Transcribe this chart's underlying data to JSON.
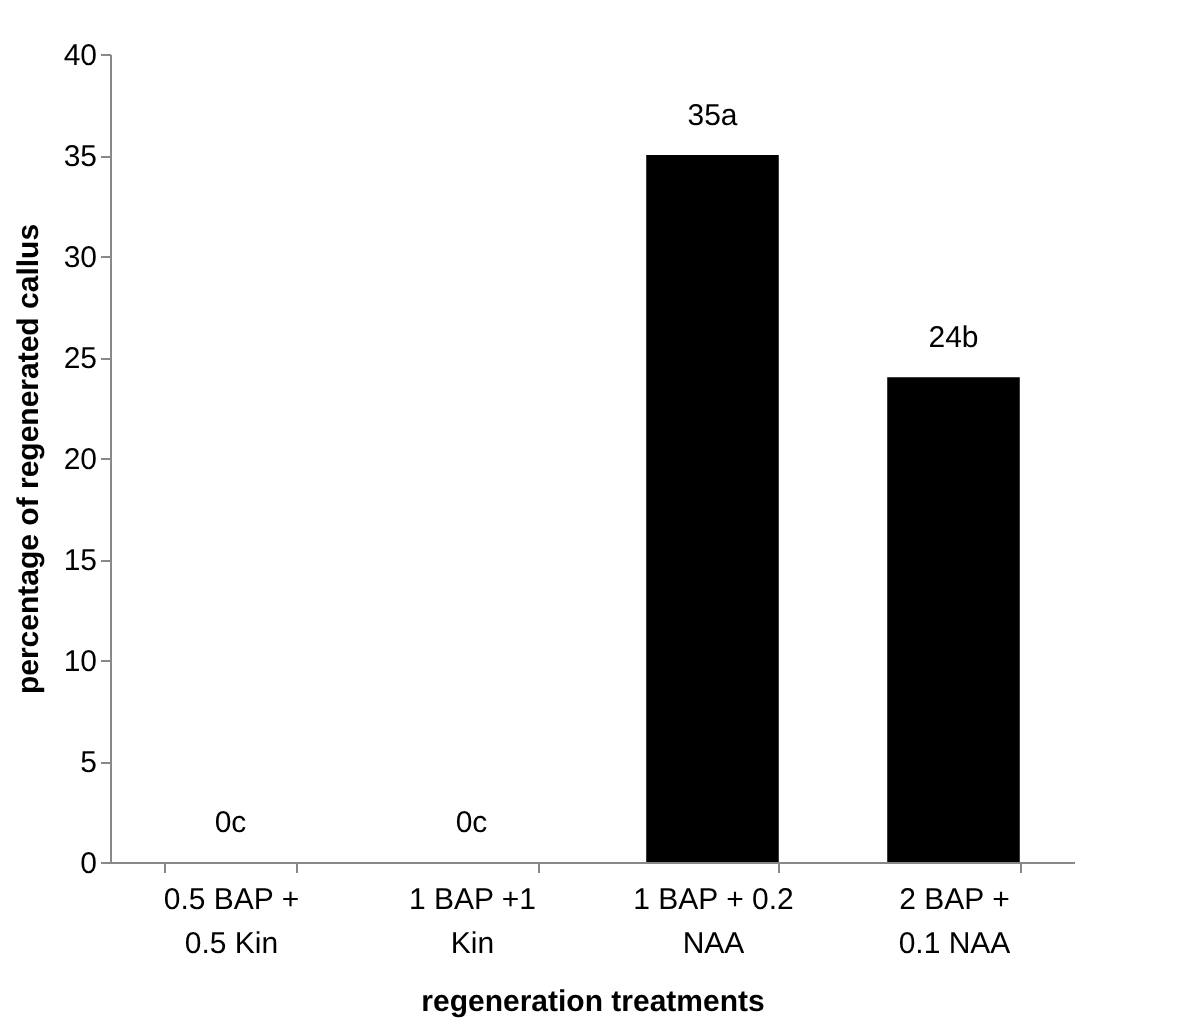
{
  "chart_data": {
    "type": "bar",
    "xlabel": "regeneration treatments",
    "ylabel": "percentage of regenerated callus",
    "categories": [
      "0.5 BAP +\n0.5 Kin",
      "1 BAP +1\nKin",
      "1 BAP + 0.2\nNAA",
      "2 BAP +\n0.1 NAA"
    ],
    "values": [
      0,
      0,
      35,
      24
    ],
    "value_labels": [
      "0c",
      "0c",
      "35a",
      "24b"
    ],
    "color": "#000000",
    "ylim": [
      0,
      40
    ],
    "yticks": [
      0,
      5,
      10,
      15,
      20,
      25,
      30,
      35,
      40
    ],
    "grid": false
  }
}
